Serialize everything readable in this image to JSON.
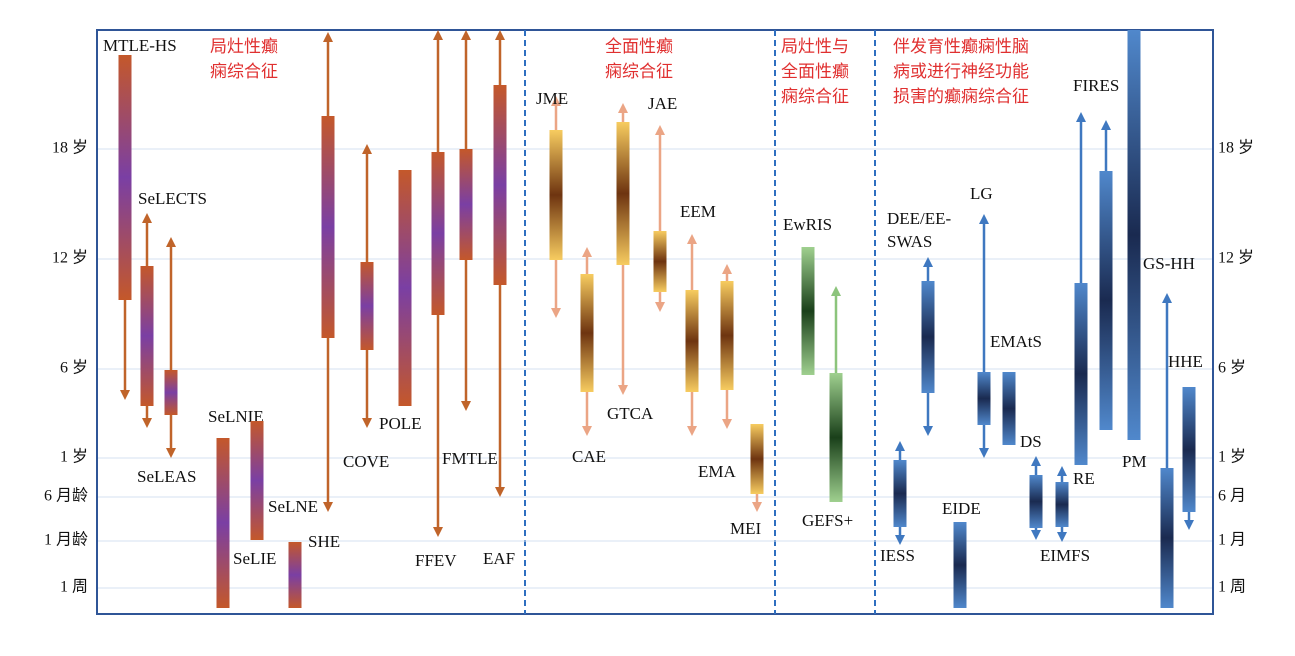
{
  "section_titles": [
    [
      "局灶性癫",
      "痫综合征"
    ],
    [
      "全面性癫",
      "痫综合征"
    ],
    [
      "局灶性与",
      "全面性癫",
      "痫综合征"
    ],
    [
      "伴发育性癫痫性脑",
      "病或进行神经功能",
      "损害的癫痫综合征"
    ]
  ],
  "axis_left": [
    "18 岁",
    "12 岁",
    "6 岁",
    "1 岁",
    "6 月龄",
    "1 月龄",
    "1 周"
  ],
  "axis_right": [
    "18 岁",
    "12 岁",
    "6 岁",
    "1 岁",
    "6 月",
    "1 月",
    "1 周"
  ],
  "syndromes": [
    {
      "lines": [
        "MTLE-HS"
      ]
    },
    {
      "lines": [
        "SeLECTS"
      ]
    },
    {
      "lines": [
        "SeLEAS"
      ]
    },
    {
      "lines": [
        "SeLNIE"
      ]
    },
    {
      "lines": [
        "SeLNE"
      ]
    },
    {
      "lines": [
        "SeLIE"
      ]
    },
    {
      "lines": [
        "SHE"
      ]
    },
    {
      "lines": [
        "COVE"
      ]
    },
    {
      "lines": [
        "POLE"
      ]
    },
    {
      "lines": [
        "FFEV"
      ]
    },
    {
      "lines": [
        "FMTLE"
      ]
    },
    {
      "lines": [
        "EAF"
      ]
    },
    {
      "lines": [
        "JME"
      ]
    },
    {
      "lines": [
        "CAE"
      ]
    },
    {
      "lines": [
        "GTCA"
      ]
    },
    {
      "lines": [
        "JAE"
      ]
    },
    {
      "lines": [
        "EEM"
      ]
    },
    {
      "lines": [
        "EMA"
      ]
    },
    {
      "lines": [
        "MEI"
      ]
    },
    {
      "lines": [
        "EwRIS"
      ]
    },
    {
      "lines": [
        "GEFS+"
      ]
    },
    {
      "lines": [
        "IESS"
      ]
    },
    {
      "lines": [
        "DEE/EE-",
        "SWAS"
      ]
    },
    {
      "lines": [
        "EIDE"
      ]
    },
    {
      "lines": [
        "LG"
      ]
    },
    {
      "lines": [
        "EMAtS"
      ]
    },
    {
      "lines": [
        "DS"
      ]
    },
    {
      "lines": [
        "EIMFS"
      ]
    },
    {
      "lines": [
        "RE"
      ]
    },
    {
      "lines": [
        "FIRES"
      ]
    },
    {
      "lines": [
        "PM"
      ]
    },
    {
      "lines": [
        "GS-HH"
      ]
    },
    {
      "lines": [
        "HHE"
      ]
    }
  ]
}
